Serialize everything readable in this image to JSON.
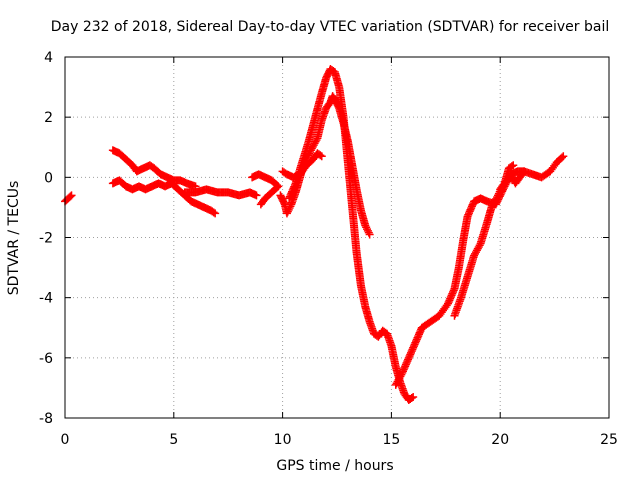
{
  "chart_data": {
    "type": "scatter",
    "title": "Day 232 of 2018, Sidereal Day-to-day VTEC variation (SDTVAR) for receiver bail",
    "xlabel": "GPS time / hours",
    "ylabel": "SDTVAR / TECUs",
    "xlim": [
      0,
      25
    ],
    "ylim": [
      -8,
      4
    ],
    "xticks": [
      0,
      5,
      10,
      15,
      20,
      25
    ],
    "yticks": [
      -8,
      -6,
      -4,
      -2,
      0,
      2,
      4
    ],
    "grid": true,
    "marker": "+",
    "colors": {
      "series": "#ff0000",
      "grid": "#a0a0a0",
      "axes": "#000000"
    },
    "series": [
      {
        "x": [
          0.0,
          0.15,
          0.3
        ],
        "y": [
          -0.8,
          -0.7,
          -0.6
        ]
      },
      {
        "x": [
          2.2,
          2.5,
          2.8,
          3.1,
          3.3,
          3.6,
          3.9,
          4.1,
          4.4,
          4.7,
          5.0,
          5.3,
          5.6,
          6.0
        ],
        "y": [
          0.9,
          0.8,
          0.6,
          0.4,
          0.2,
          0.3,
          0.4,
          0.3,
          0.1,
          0.0,
          -0.1,
          -0.1,
          -0.2,
          -0.3
        ]
      },
      {
        "x": [
          2.2,
          2.5,
          2.8,
          3.1,
          3.4,
          3.7,
          4.0,
          4.3,
          4.6,
          4.9,
          5.2,
          5.5,
          5.8,
          6.1,
          6.4,
          6.7,
          6.9
        ],
        "y": [
          -0.2,
          -0.1,
          -0.3,
          -0.4,
          -0.3,
          -0.4,
          -0.3,
          -0.2,
          -0.3,
          -0.2,
          -0.4,
          -0.6,
          -0.8,
          -0.9,
          -1.0,
          -1.1,
          -1.2
        ]
      },
      {
        "x": [
          5.5,
          6.0,
          6.5,
          7.0,
          7.5,
          8.0,
          8.5,
          8.8
        ],
        "y": [
          -0.5,
          -0.5,
          -0.4,
          -0.5,
          -0.5,
          -0.6,
          -0.5,
          -0.6
        ]
      },
      {
        "x": [
          8.6,
          8.9,
          9.2,
          9.5,
          9.8,
          9.5,
          9.2,
          9.0
        ],
        "y": [
          0.0,
          0.1,
          0.0,
          -0.1,
          -0.3,
          -0.5,
          -0.7,
          -0.9
        ]
      },
      {
        "x": [
          9.9,
          10.1,
          10.2,
          10.4,
          10.6,
          10.8,
          11.0,
          11.3,
          11.6,
          11.8,
          12.0,
          12.2,
          12.3,
          12.4,
          12.6,
          12.8,
          13.0,
          13.2,
          13.4,
          13.6,
          13.8,
          14.0
        ],
        "y": [
          -0.6,
          -0.9,
          -1.2,
          -0.9,
          -0.5,
          0.0,
          0.5,
          0.9,
          1.3,
          1.9,
          2.3,
          2.5,
          2.7,
          2.6,
          2.3,
          1.8,
          1.2,
          0.4,
          -0.4,
          -1.1,
          -1.6,
          -1.9
        ]
      },
      {
        "x": [
          10.0,
          10.2,
          10.5,
          10.8,
          11.1,
          11.4,
          11.6,
          11.8
        ],
        "y": [
          0.2,
          0.1,
          0.0,
          0.1,
          0.4,
          0.6,
          0.8,
          0.7
        ]
      },
      {
        "x": [
          10.3,
          10.6,
          10.9,
          11.2,
          11.5,
          11.8,
          12.0,
          12.2,
          12.4,
          12.6,
          12.8,
          13.0,
          13.2,
          13.4,
          13.6,
          13.8,
          14.0,
          14.2,
          14.4,
          14.6,
          14.8,
          15.0,
          15.2,
          15.4,
          15.6,
          15.8,
          16.0
        ],
        "y": [
          -0.7,
          -0.2,
          0.5,
          1.2,
          2.0,
          2.8,
          3.3,
          3.6,
          3.5,
          3.0,
          2.0,
          0.5,
          -1.0,
          -2.5,
          -3.6,
          -4.3,
          -4.8,
          -5.2,
          -5.3,
          -5.1,
          -5.2,
          -5.6,
          -6.3,
          -6.8,
          -7.2,
          -7.4,
          -7.3
        ]
      },
      {
        "x": [
          15.2,
          15.5,
          15.8,
          16.1,
          16.4,
          16.8,
          17.2,
          17.6,
          17.9,
          18.1,
          18.3,
          18.5,
          18.8,
          19.1,
          19.4,
          19.8,
          20.2,
          20.5,
          20.8,
          21.1,
          21.5,
          21.9,
          22.3,
          22.6,
          22.9
        ],
        "y": [
          -6.9,
          -6.5,
          -6.0,
          -5.5,
          -5.0,
          -4.8,
          -4.6,
          -4.2,
          -3.7,
          -3.0,
          -2.1,
          -1.3,
          -0.8,
          -0.7,
          -0.8,
          -0.9,
          -0.3,
          0.1,
          0.2,
          0.2,
          0.1,
          0.0,
          0.2,
          0.5,
          0.7
        ]
      },
      {
        "x": [
          17.9,
          18.2,
          18.5,
          18.8,
          19.1,
          19.4,
          19.6,
          19.9,
          20.1,
          20.3,
          20.5,
          20.7,
          20.9,
          21.1
        ],
        "y": [
          -4.6,
          -4.0,
          -3.3,
          -2.6,
          -2.2,
          -1.5,
          -1.0,
          -0.6,
          -0.3,
          -0.1,
          0.1,
          -0.2,
          0.0,
          0.2
        ]
      },
      {
        "x": [
          20.0,
          20.2,
          20.4,
          20.6
        ],
        "y": [
          -0.4,
          -0.2,
          0.3,
          0.4
        ]
      }
    ]
  }
}
